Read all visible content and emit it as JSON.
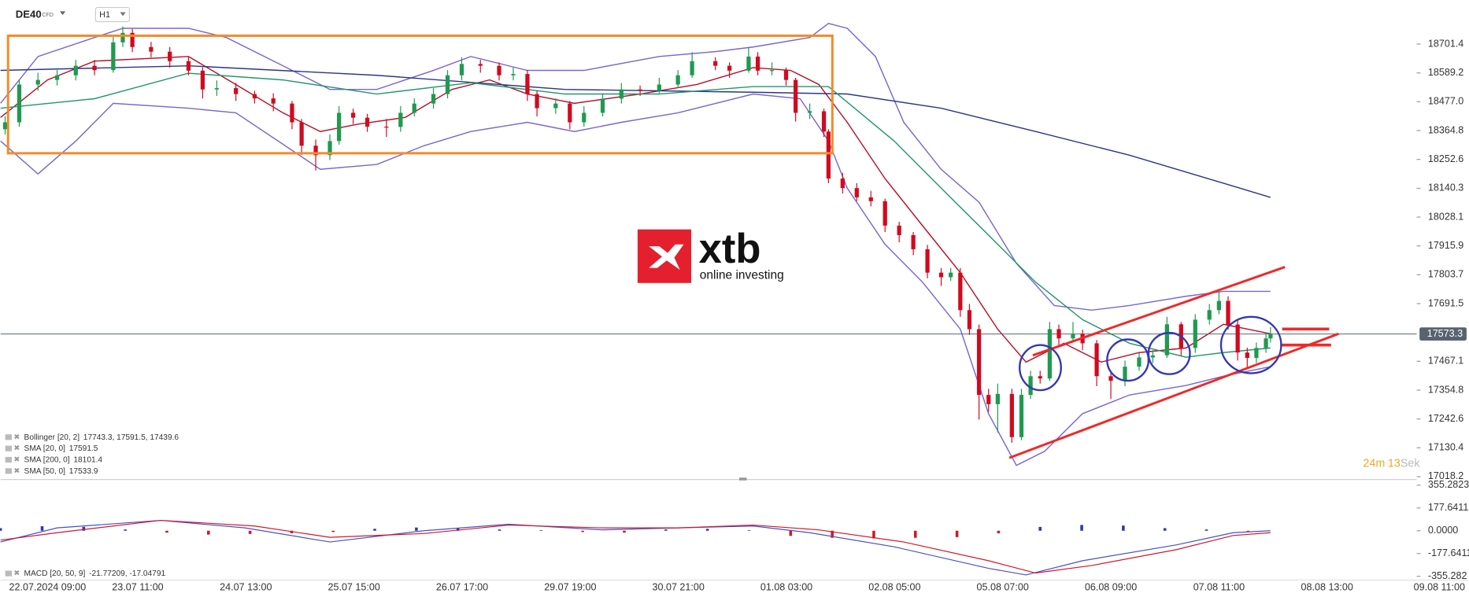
{
  "header": {
    "symbol": "DE40",
    "kind": "CFD",
    "interval": "H1"
  },
  "logo": {
    "brand": "xtb",
    "tagline": "online investing"
  },
  "timer": [
    "24",
    "m",
    "13",
    "Sek"
  ],
  "chart_data": {
    "type": "candlestick",
    "last_price": 17573.3,
    "ylim": [
      17007,
      18873
    ],
    "yticks": [
      18701.4,
      18589.2,
      {
        "value": 18477,
        "label": "18477.0"
      },
      18364.8,
      18252.6,
      18140.3,
      18028.1,
      17915.9,
      17803.7,
      17691.5,
      17467.1,
      17354.8,
      17242.6,
      17130.4,
      17018.2
    ],
    "xlim": [
      0,
      353
    ],
    "xticks": [
      {
        "value": 11.3,
        "label": "22.07.2024 09:00"
      },
      {
        "value": 33,
        "label": "23.07 11:00"
      },
      {
        "value": 59,
        "label": "24.07 13:00"
      },
      {
        "value": 85,
        "label": "25.07 15:00"
      },
      {
        "value": 111,
        "label": "26.07 17:00"
      },
      {
        "value": 137,
        "label": "29.07 19:00"
      },
      {
        "value": 163,
        "label": "30.07 21:00"
      },
      {
        "value": 189,
        "label": "01.08 03:00"
      },
      {
        "value": 215,
        "label": "02.08 05:00"
      },
      {
        "value": 241,
        "label": "05.08 07:00"
      },
      {
        "value": 267,
        "label": "06.08 09:00"
      },
      {
        "value": 293,
        "label": "07.08 11:00"
      },
      {
        "value": 319,
        "label": "08.08 13:00"
      },
      {
        "value": 346,
        "label": "09.08 11:00"
      }
    ],
    "up_color": "#1f9a4f",
    "down_color": "#d10a1f",
    "candles": [
      [
        1.1,
        18370,
        18420,
        18350,
        18397
      ],
      [
        4.5,
        18397,
        18560,
        18380,
        18544
      ],
      [
        9.0,
        18544,
        18590,
        18520,
        18562
      ],
      [
        13.6,
        18562,
        18600,
        18540,
        18580
      ],
      [
        18.1,
        18580,
        18640,
        18560,
        18617
      ],
      [
        22.6,
        18617,
        18640,
        18580,
        18600
      ],
      [
        27.1,
        18600,
        18730,
        18590,
        18708
      ],
      [
        29.4,
        18708,
        18770,
        18690,
        18745
      ],
      [
        31.7,
        18745,
        18760,
        18670,
        18690
      ],
      [
        36.2,
        18690,
        18710,
        18650,
        18672
      ],
      [
        40.7,
        18672,
        18690,
        18610,
        18635
      ],
      [
        45.2,
        18635,
        18650,
        18580,
        18598
      ],
      [
        48.6,
        18598,
        18610,
        18490,
        18525
      ],
      [
        52.0,
        18525,
        18560,
        18500,
        18530
      ],
      [
        56.6,
        18530,
        18550,
        18480,
        18507
      ],
      [
        61.1,
        18507,
        18520,
        18470,
        18490
      ],
      [
        65.6,
        18490,
        18510,
        18440,
        18470
      ],
      [
        70.1,
        18470,
        18480,
        18370,
        18397
      ],
      [
        72.4,
        18397,
        18410,
        18270,
        18306
      ],
      [
        75.8,
        18306,
        18330,
        18210,
        18269
      ],
      [
        79.2,
        18269,
        18350,
        18250,
        18324
      ],
      [
        81.4,
        18324,
        18460,
        18310,
        18434
      ],
      [
        84.8,
        18434,
        18450,
        18390,
        18415
      ],
      [
        88.2,
        18415,
        18430,
        18360,
        18380
      ],
      [
        92.8,
        18380,
        18410,
        18340,
        18379
      ],
      [
        96.2,
        18379,
        18460,
        18360,
        18434
      ],
      [
        99.5,
        18434,
        18490,
        18420,
        18470
      ],
      [
        104.1,
        18470,
        18530,
        18450,
        18507
      ],
      [
        107.5,
        18507,
        18600,
        18490,
        18580
      ],
      [
        110.9,
        18580,
        18650,
        18560,
        18624
      ],
      [
        115.4,
        18624,
        18640,
        18590,
        18617
      ],
      [
        119.9,
        18617,
        18630,
        18560,
        18580
      ],
      [
        123.3,
        18580,
        18610,
        18560,
        18585
      ],
      [
        126.7,
        18585,
        18600,
        18480,
        18507
      ],
      [
        129.0,
        18507,
        18520,
        18420,
        18452
      ],
      [
        133.5,
        18452,
        18490,
        18430,
        18470
      ],
      [
        136.9,
        18470,
        18480,
        18370,
        18397
      ],
      [
        140.3,
        18397,
        18460,
        18380,
        18434
      ],
      [
        144.8,
        18434,
        18510,
        18420,
        18489
      ],
      [
        149.3,
        18489,
        18550,
        18470,
        18525
      ],
      [
        153.8,
        18525,
        18540,
        18500,
        18520
      ],
      [
        158.4,
        18520,
        18570,
        18510,
        18544
      ],
      [
        162.9,
        18544,
        18600,
        18530,
        18580
      ],
      [
        166.3,
        18580,
        18670,
        18570,
        18635
      ],
      [
        171.9,
        18635,
        18650,
        18600,
        18617
      ],
      [
        175.3,
        18617,
        18630,
        18570,
        18598
      ],
      [
        179.9,
        18598,
        18690,
        18590,
        18653
      ],
      [
        182.1,
        18653,
        18670,
        18580,
        18598
      ],
      [
        185.5,
        18598,
        18630,
        18580,
        18600
      ],
      [
        188.9,
        18600,
        18610,
        18540,
        18562
      ],
      [
        191.2,
        18562,
        18570,
        18400,
        18434
      ],
      [
        194.6,
        18434,
        18470,
        18410,
        18440
      ],
      [
        198.0,
        18440,
        18450,
        18340,
        18361
      ],
      [
        199.1,
        18361,
        18370,
        18160,
        18178
      ],
      [
        202.5,
        18178,
        18200,
        18120,
        18141
      ],
      [
        205.9,
        18141,
        18160,
        18090,
        18105
      ],
      [
        209.3,
        18105,
        18130,
        18070,
        18090
      ],
      [
        212.7,
        18090,
        18100,
        17970,
        17995
      ],
      [
        216.1,
        17995,
        18010,
        17930,
        17958
      ],
      [
        219.5,
        17958,
        17970,
        17880,
        17903
      ],
      [
        222.9,
        17903,
        17920,
        17790,
        17812
      ],
      [
        226.2,
        17812,
        17830,
        17760,
        17794
      ],
      [
        228.5,
        17794,
        17830,
        17780,
        17812
      ],
      [
        230.8,
        17812,
        17830,
        17640,
        17666
      ],
      [
        233.0,
        17666,
        17690,
        17570,
        17592
      ],
      [
        235.3,
        17592,
        17610,
        17240,
        17336
      ],
      [
        237.6,
        17336,
        17360,
        17270,
        17300
      ],
      [
        239.8,
        17300,
        17380,
        17190,
        17340
      ],
      [
        243.2,
        17340,
        17360,
        17150,
        17172
      ],
      [
        245.5,
        17172,
        17360,
        17160,
        17336
      ],
      [
        247.7,
        17336,
        17430,
        17320,
        17409
      ],
      [
        250.0,
        17409,
        17430,
        17380,
        17400
      ],
      [
        252.3,
        17400,
        17620,
        17390,
        17592
      ],
      [
        254.5,
        17592,
        17610,
        17530,
        17556
      ],
      [
        257.9,
        17556,
        17620,
        17540,
        17574
      ],
      [
        260.2,
        17574,
        17590,
        17510,
        17537
      ],
      [
        263.6,
        17537,
        17550,
        17370,
        17409
      ],
      [
        267.0,
        17409,
        17420,
        17320,
        17391
      ],
      [
        270.4,
        17391,
        17470,
        17370,
        17446
      ],
      [
        273.8,
        17446,
        17500,
        17430,
        17482
      ],
      [
        277.1,
        17482,
        17510,
        17460,
        17490
      ],
      [
        280.5,
        17490,
        17640,
        17480,
        17611
      ],
      [
        283.9,
        17611,
        17620,
        17490,
        17519
      ],
      [
        287.3,
        17519,
        17650,
        17500,
        17629
      ],
      [
        290.7,
        17629,
        17690,
        17610,
        17666
      ],
      [
        293.0,
        17666,
        17740,
        17650,
        17702
      ],
      [
        295.2,
        17702,
        17720,
        17590,
        17610
      ],
      [
        297.5,
        17610,
        17630,
        17470,
        17501
      ],
      [
        299.8,
        17501,
        17520,
        17440,
        17480
      ],
      [
        302.0,
        17480,
        17540,
        17460,
        17519
      ],
      [
        304.3,
        17519,
        17580,
        17500,
        17556
      ],
      [
        305.4,
        17556,
        17600,
        17540,
        17574
      ]
    ],
    "bollinger": {
      "name": "Bollinger [20, 2]",
      "readout": "17743.3, 17591.5, 17439.6",
      "color": "#7b66cf",
      "upper_x": [
        0,
        9,
        22.6,
        29.4,
        45.2,
        54.3,
        67.9,
        79.2,
        90.5,
        104.1,
        113.1,
        126.7,
        140.3,
        158.4,
        171.9,
        181,
        194.6,
        199.1,
        203.6,
        210.4,
        217.2,
        226.2,
        235.3,
        244.3,
        253.4,
        262.4,
        271.5,
        285.1,
        294.1,
        305.4
      ],
      "upper": [
        18471,
        18653,
        18727,
        18763,
        18763,
        18727,
        18617,
        18525,
        18525,
        18599,
        18653,
        18599,
        18599,
        18653,
        18672,
        18690,
        18727,
        18782,
        18763,
        18653,
        18397,
        18214,
        18086,
        17848,
        17684,
        17666,
        17684,
        17720,
        17739,
        17739
      ],
      "lower_x": [
        0,
        9,
        18.1,
        27.1,
        45.2,
        56.6,
        70.1,
        76.9,
        90.5,
        101.8,
        113.1,
        126.7,
        138,
        149.3,
        162.9,
        181,
        192.3,
        199.1,
        203.6,
        212.7,
        221.7,
        230.8,
        237.6,
        244.3,
        251.1,
        260.2,
        271.5,
        285.1,
        294.1,
        305.4
      ],
      "lower": [
        18324,
        18196,
        18324,
        18471,
        18452,
        18434,
        18288,
        18214,
        18233,
        18306,
        18361,
        18397,
        18361,
        18397,
        18434,
        18507,
        18489,
        18324,
        18141,
        17922,
        17775,
        17592,
        17263,
        17062,
        17117,
        17263,
        17336,
        17373,
        17409,
        17446
      ]
    },
    "smas": [
      {
        "name": "SMA [20, 0]",
        "readout": "17591.5",
        "color": "#b3122b",
        "x": [
          0,
          11.3,
          22.6,
          45.2,
          56.6,
          67.9,
          76.9,
          86,
          97.3,
          108.6,
          117.6,
          126.7,
          138,
          153.8,
          167.4,
          181,
          190,
          196.8,
          203.6,
          212.7,
          221.7,
          230.8,
          239.8,
          246.6,
          255.7,
          264.7,
          273.8,
          285.1,
          294.1,
          305.4
        ],
        "values": [
          18416,
          18562,
          18635,
          18653,
          18544,
          18434,
          18361,
          18390,
          18416,
          18525,
          18562,
          18507,
          18471,
          18507,
          18544,
          18610,
          18599,
          18544,
          18397,
          18178,
          17995,
          17812,
          17592,
          17464,
          17537,
          17464,
          17501,
          17519,
          17611,
          17574
        ]
      },
      {
        "name": "SMA [200, 0]",
        "readout": "18101.4",
        "color": "#2b3687",
        "x": [
          0,
          45.2,
          90.5,
          135.7,
          181,
          203.6,
          226.2,
          248.9,
          271.5,
          294.1,
          305.4
        ],
        "values": [
          18599,
          18617,
          18580,
          18525,
          18514,
          18507,
          18452,
          18361,
          18269,
          18160,
          18105
        ]
      },
      {
        "name": "SMA [50, 0]",
        "readout": "17533.9",
        "color": "#23976b",
        "x": [
          0,
          22.6,
          45.2,
          67.9,
          90.5,
          113.1,
          135.7,
          158.4,
          181,
          199.1,
          214.9,
          226.2,
          237.6,
          248.9,
          260.2,
          271.5,
          285.1,
          294.1,
          305.4
        ],
        "values": [
          18452,
          18489,
          18588,
          18562,
          18507,
          18551,
          18507,
          18507,
          18536,
          18536,
          18324,
          18141,
          17958,
          17775,
          17629,
          17537,
          17483,
          17501,
          17519
        ]
      }
    ],
    "macd": {
      "name": "MACD [20, 50, 9]",
      "readout": "-21.77209, -17.04791",
      "y2lim": [
        -392,
        385
      ],
      "y2ticks": [
        355.2823,
        177.6411,
        {
          "value": 0,
          "label": "0.0000"
        },
        -177.6411,
        -355.282
      ],
      "line": {
        "color": "#4a4fc4",
        "x": [
          0,
          13.6,
          38.5,
          58.8,
          79.2,
          101.8,
          122.2,
          144.8,
          162.9,
          181,
          194.6,
          214.9,
          237.6,
          246.6,
          260.2,
          282.8,
          296.4,
          305.4
        ],
        "values": [
          -88,
          22,
          81,
          22,
          -88,
          0,
          51,
          7,
          22,
          37,
          -15,
          -125,
          -293,
          -344,
          -234,
          -110,
          -15,
          0
        ]
      },
      "signal": {
        "color": "#d0182e",
        "x": [
          0,
          13.6,
          38.5,
          61.1,
          79.2,
          101.8,
          122.2,
          144.8,
          162.9,
          181,
          196.8,
          217.2,
          237.6,
          248.9,
          262.4,
          282.8,
          296.4,
          305.4
        ],
        "values": [
          -73,
          -15,
          81,
          37,
          -51,
          -22,
          44,
          22,
          22,
          44,
          7,
          -88,
          -234,
          -330,
          -271,
          -147,
          -37,
          -15
        ]
      },
      "histogram": {
        "up_color": "#2b3aa8",
        "down_color": "#d0182e",
        "x": [
          0,
          10,
          20,
          30,
          40,
          50,
          60,
          70,
          80,
          90,
          100,
          110,
          120,
          130,
          140,
          150,
          160,
          170,
          180,
          190,
          200,
          210,
          220,
          230,
          240,
          250,
          260,
          270,
          280,
          290,
          300
        ],
        "values": [
          20,
          35,
          30,
          10,
          -15,
          -30,
          -25,
          -20,
          -10,
          15,
          25,
          20,
          10,
          5,
          -10,
          -15,
          10,
          15,
          5,
          -40,
          -55,
          -60,
          -55,
          -50,
          -20,
          30,
          45,
          40,
          20,
          10,
          -5
        ]
      }
    }
  }
}
